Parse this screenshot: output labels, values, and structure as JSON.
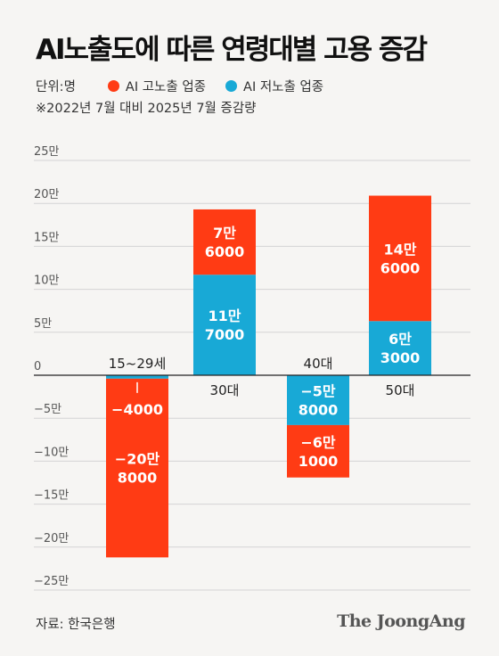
{
  "title": "AI노출도에 따른 연령대별 고용 증감",
  "legend": {
    "unit": "단위:명",
    "items": [
      {
        "label": "AI 고노출 업종",
        "color": "#ff3b14"
      },
      {
        "label": "AI 저노출 업종",
        "color": "#18a9d6"
      }
    ]
  },
  "note": "※2022년 7월 대비 2025년 7월 증감량",
  "source": "자료: 한국은행",
  "brand": "The JoongAng",
  "chart_data": {
    "type": "bar",
    "stacked": true,
    "categories": [
      "15~29세",
      "30대",
      "40대",
      "50대"
    ],
    "series": [
      {
        "name": "AI 저노출 업종",
        "color": "#18a9d6",
        "values": [
          -4000,
          117000,
          -58000,
          63000
        ],
        "labels": [
          "−4000",
          "11만\n7000",
          "−5만\n8000",
          "6만\n3000"
        ]
      },
      {
        "name": "AI 고노출 업종",
        "color": "#ff3b14",
        "values": [
          -208000,
          76000,
          -61000,
          146000
        ],
        "labels": [
          "−20만\n8000",
          "7만\n6000",
          "−6만\n1000",
          "14만\n6000"
        ]
      }
    ],
    "ylim": [
      -250000,
      250000
    ],
    "yticks": [
      250000,
      200000,
      150000,
      100000,
      50000,
      0,
      -50000,
      -100000,
      -150000,
      -200000,
      -250000
    ],
    "ytick_labels": [
      "25만",
      "20만",
      "15만",
      "10만",
      "5만",
      "0",
      "−5만",
      "−10만",
      "−15만",
      "−20만",
      "−25만"
    ],
    "grid": true
  }
}
